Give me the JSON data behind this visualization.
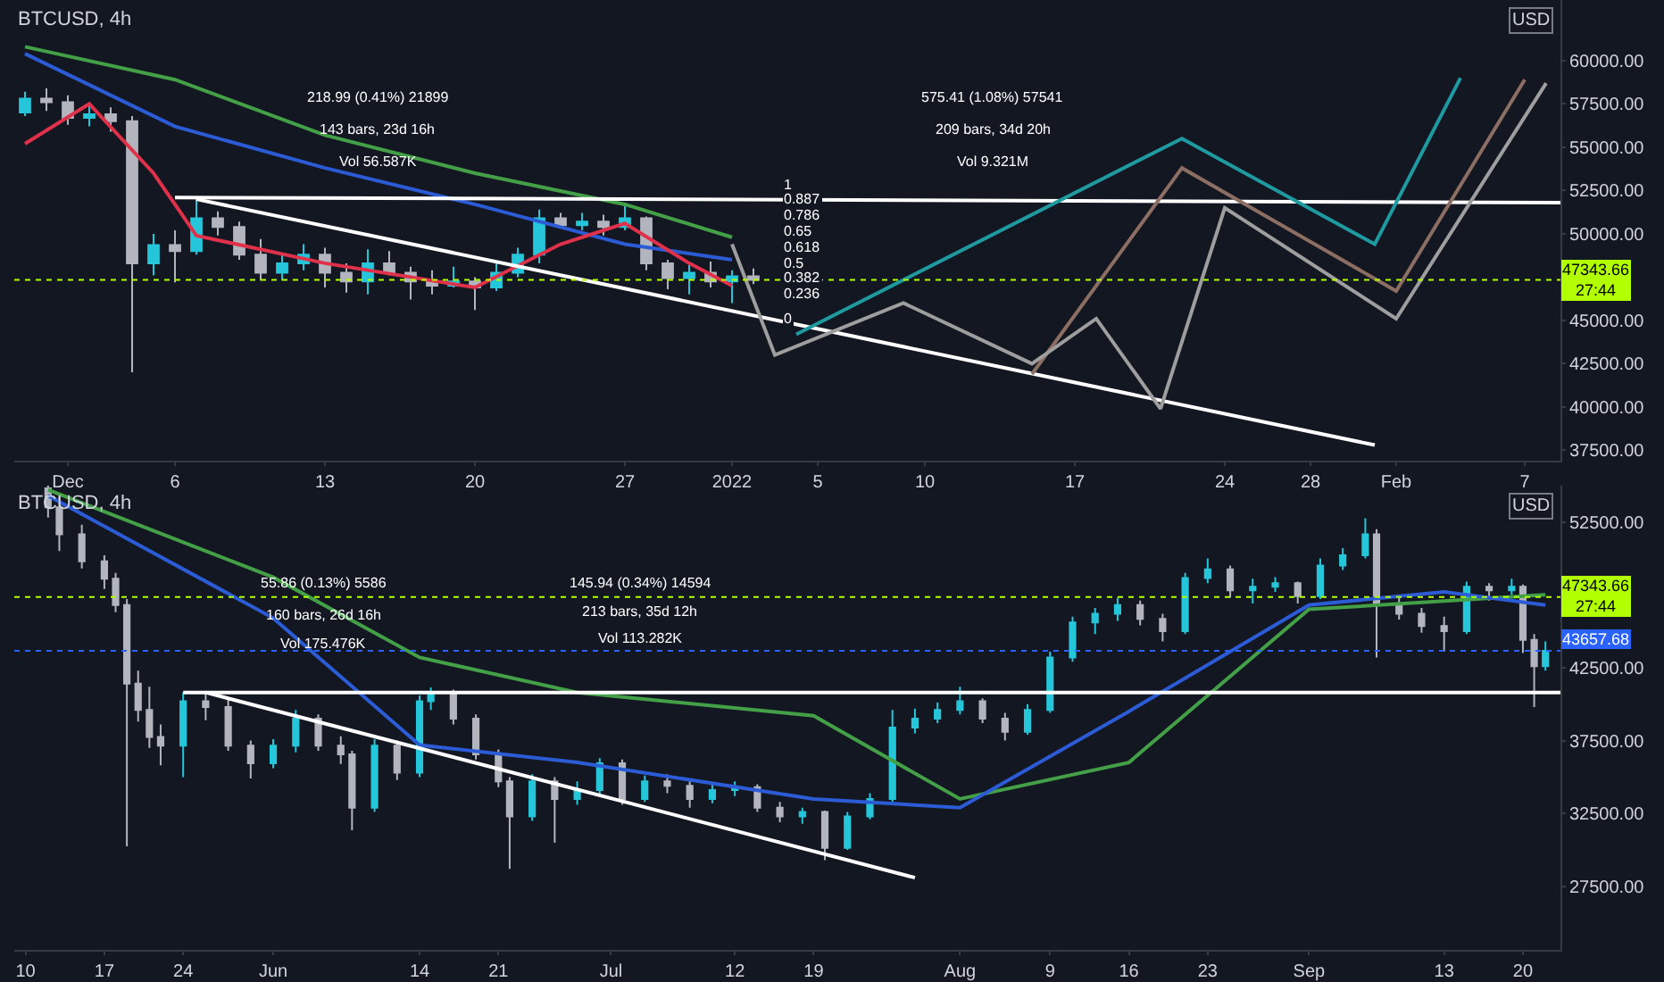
{
  "chart_data": [
    {
      "type": "candlestick",
      "title": "BTCUSD, 4h",
      "ylabel": "USD",
      "x": [
        "2021-11-29",
        "2021-11-30",
        "2021-12-01",
        "2021-12-02",
        "2021-12-03",
        "2021-12-04",
        "2021-12-05",
        "2021-12-06",
        "2021-12-07",
        "2021-12-08",
        "2021-12-09",
        "2021-12-10",
        "2021-12-11",
        "2021-12-12",
        "2021-12-13",
        "2021-12-14",
        "2021-12-15",
        "2021-12-16",
        "2021-12-17",
        "2021-12-18",
        "2021-12-19",
        "2021-12-20",
        "2021-12-21",
        "2021-12-22",
        "2021-12-23",
        "2021-12-24",
        "2021-12-25",
        "2021-12-26",
        "2021-12-27",
        "2021-12-28",
        "2021-12-29",
        "2021-12-30",
        "2021-12-31",
        "2022-01-01",
        "2022-01-02"
      ],
      "ohlc": [
        [
          57000,
          58200,
          56800,
          57800
        ],
        [
          57800,
          58400,
          57100,
          57600
        ],
        [
          57600,
          58000,
          56300,
          56700
        ],
        [
          56700,
          57400,
          56200,
          56900
        ],
        [
          56900,
          57300,
          55900,
          56500
        ],
        [
          56500,
          56800,
          42000,
          48300
        ],
        [
          48300,
          50000,
          47600,
          49350
        ],
        [
          49350,
          50200,
          47200,
          49000
        ],
        [
          49000,
          52000,
          48800,
          50900
        ],
        [
          50900,
          51300,
          49900,
          50400
        ],
        [
          50400,
          50700,
          48500,
          48800
        ],
        [
          48800,
          49700,
          47300,
          47750
        ],
        [
          47750,
          48900,
          47300,
          48300
        ],
        [
          48300,
          49400,
          47900,
          48800
        ],
        [
          48800,
          49200,
          46900,
          47750
        ],
        [
          47750,
          48300,
          46600,
          47250
        ],
        [
          47250,
          49100,
          46500,
          48300
        ],
        [
          48300,
          49000,
          47600,
          47750
        ],
        [
          47750,
          48100,
          46200,
          47250
        ],
        [
          47250,
          47900,
          46500,
          47000
        ],
        [
          47000,
          48100,
          46900,
          47250
        ],
        [
          47250,
          47500,
          45600,
          46900
        ],
        [
          46900,
          48300,
          46700,
          47750
        ],
        [
          47750,
          49200,
          47500,
          48800
        ],
        [
          48800,
          51400,
          48300,
          50900
        ],
        [
          50900,
          51200,
          50300,
          50500
        ],
        [
          50500,
          51200,
          50200,
          50700
        ],
        [
          50700,
          51100,
          49900,
          50400
        ],
        [
          50400,
          51800,
          50200,
          50900
        ],
        [
          50900,
          51000,
          47900,
          48300
        ],
        [
          48300,
          48500,
          46800,
          47450
        ],
        [
          47450,
          48200,
          46500,
          47750
        ],
        [
          47750,
          48400,
          46900,
          47250
        ],
        [
          47250,
          47900,
          46000,
          47550
        ],
        [
          47550,
          48000,
          47100,
          47340
        ]
      ],
      "colors": [
        "#26c6da",
        "#b2b5be",
        "#b2b5be",
        "#26c6da",
        "#b2b5be",
        "#b2b5be",
        "#26c6da",
        "#b2b5be",
        "#26c6da",
        "#b2b5be",
        "#b2b5be",
        "#b2b5be",
        "#26c6da",
        "#26c6da",
        "#b2b5be",
        "#b2b5be",
        "#26c6da",
        "#b2b5be",
        "#b2b5be",
        "#b2b5be",
        "#26c6da",
        "#b2b5be",
        "#26c6da",
        "#26c6da",
        "#26c6da",
        "#b2b5be",
        "#26c6da",
        "#b2b5be",
        "#26c6da",
        "#b2b5be",
        "#b2b5be",
        "#26c6da",
        "#b2b5be",
        "#26c6da",
        "#b2b5be"
      ],
      "series": [
        {
          "type": "line",
          "color": "#43a047",
          "x": [
            "2021-11-29",
            "2021-12-06",
            "2021-12-13",
            "2021-12-20",
            "2021-12-27",
            "2022-01-01"
          ],
          "values": [
            60800,
            58900,
            55700,
            53500,
            51700,
            49800
          ]
        },
        {
          "type": "line",
          "color": "#2c5bd6",
          "x": [
            "2021-11-29",
            "2021-12-06",
            "2021-12-13",
            "2021-12-20",
            "2021-12-27",
            "2022-01-01"
          ],
          "values": [
            60400,
            56200,
            53800,
            51700,
            49400,
            48500
          ]
        },
        {
          "type": "line",
          "color": "#e0314b",
          "x": [
            "2021-11-29",
            "2021-12-02",
            "2021-12-05",
            "2021-12-07",
            "2021-12-13",
            "2021-12-20",
            "2021-12-24",
            "2021-12-27",
            "2021-12-30",
            "2022-01-01"
          ],
          "values": [
            55200,
            57500,
            53500,
            49900,
            48300,
            46900,
            49400,
            50600,
            48300,
            47000
          ]
        },
        {
          "type": "line",
          "color": "#ffffff",
          "x": [
            "2021-12-06",
            "2022-02-08T16:00"
          ],
          "values": [
            52100,
            51800
          ]
        },
        {
          "type": "line",
          "color": "#ffffff",
          "x": [
            "2021-12-07",
            "2022-01-31"
          ],
          "values": [
            52000,
            37800
          ]
        },
        {
          "type": "line",
          "color": "#1e9aa0",
          "x": [
            "2022-01-04",
            "2022-01-22",
            "2022-01-31",
            "2022-02-04"
          ],
          "values": [
            44200,
            55500,
            49400,
            59000
          ]
        },
        {
          "type": "line",
          "color": "#8d6e63",
          "x": [
            "2022-01-15",
            "2022-01-22",
            "2022-02-01",
            "2022-02-07"
          ],
          "values": [
            41900,
            53800,
            46700,
            58900
          ]
        },
        {
          "type": "line",
          "color": "#9e9e9e",
          "x": [
            "2022-01-01",
            "2022-01-03",
            "2022-01-09",
            "2022-01-15",
            "2022-01-18",
            "2022-01-21",
            "2022-01-24",
            "2022-02-01",
            "2022-02-08"
          ],
          "values": [
            49400,
            43000,
            46000,
            42500,
            45100,
            39900,
            51500,
            45100,
            58700
          ]
        }
      ],
      "xlim": [
        "2021-11-28T12:00",
        "2022-02-08T16:00"
      ],
      "xticks": [
        {
          "value": "2021-12-01",
          "label": "Dec"
        },
        {
          "value": "2021-12-06",
          "label": "6"
        },
        {
          "value": "2021-12-13",
          "label": "13"
        },
        {
          "value": "2021-12-20",
          "label": "20"
        },
        {
          "value": "2021-12-27",
          "label": "27"
        },
        {
          "value": "2022-01-01",
          "label": "2022"
        },
        {
          "value": "2022-01-05",
          "label": "5"
        },
        {
          "value": "2022-01-10",
          "label": "10"
        },
        {
          "value": "2022-01-17",
          "label": "17"
        },
        {
          "value": "2022-01-24",
          "label": "24"
        },
        {
          "value": "2022-01-28",
          "label": "28"
        },
        {
          "value": "2022-02-01",
          "label": "Feb"
        },
        {
          "value": "2022-02-07",
          "label": "7"
        }
      ],
      "ylim": [
        36900,
        63500
      ],
      "yticks": [
        {
          "value": 37500,
          "label": "37500.00"
        },
        {
          "value": 40000,
          "label": "40000.00"
        },
        {
          "value": 42500,
          "label": "42500.00"
        },
        {
          "value": 45000,
          "label": "45000.00"
        },
        {
          "value": 50000,
          "label": "50000.00"
        },
        {
          "value": 52500,
          "label": "52500.00"
        },
        {
          "value": 55000,
          "label": "55000.00"
        },
        {
          "value": 57500,
          "label": "57500.00"
        },
        {
          "value": 60000,
          "label": "60000.00"
        }
      ],
      "ref_lines": [
        {
          "axis": "y",
          "value": 47343.66,
          "label": "47343.66\n27:44",
          "color": "#b2ff00",
          "line_style": "dotted"
        }
      ],
      "annotations": [
        "218.99 (0.41%) 21899",
        "143 bars, 23d 16h",
        "Vol 56.587K",
        "575.41 (1.08%) 57541",
        "209 bars, 34d 20h",
        "Vol 9.321M",
        "1",
        "0.887",
        "0.786",
        "0.65",
        "0.618",
        "0.5",
        "0.382",
        "0.236",
        "0"
      ],
      "grid": false
    },
    {
      "type": "candlestick",
      "title": "BTCUSD, 4h",
      "ylabel": "USD",
      "x": [
        "--05-12",
        "--05-13",
        "--05-15",
        "--05-17",
        "--05-18",
        "--05-19",
        "--05-20",
        "--05-21",
        "--05-22",
        "--05-24",
        "--05-26",
        "--05-28",
        "--05-30",
        "--06-01",
        "--06-03",
        "--06-05",
        "--06-07",
        "--06-08",
        "--06-10",
        "--06-12",
        "--06-14",
        "--06-15",
        "--06-17",
        "--06-19",
        "--06-21",
        "--06-22",
        "--06-24",
        "--06-26",
        "--06-28",
        "--06-30",
        "--07-02",
        "--07-04",
        "--07-06",
        "--07-08",
        "--07-10",
        "--07-12",
        "--07-14",
        "--07-16",
        "--07-18",
        "--07-20",
        "--07-22",
        "--07-24",
        "--07-26",
        "--07-28",
        "--07-30",
        "--08-01",
        "--08-03",
        "--08-05",
        "--08-07",
        "--08-09",
        "--08-11",
        "--08-13",
        "--08-15",
        "--08-17",
        "--08-19",
        "--08-21",
        "--08-23",
        "--08-25",
        "--08-27",
        "--08-29",
        "--08-31",
        "--09-02",
        "--09-04",
        "--09-06",
        "--09-07",
        "--09-09",
        "--09-11",
        "--09-13",
        "--09-15",
        "--09-17",
        "--09-19",
        "--09-20",
        "--09-21",
        "--09-22"
      ],
      "ohlc": [
        [
          54800,
          55000,
          52800,
          53500
        ],
        [
          53500,
          54200,
          50500,
          51650
        ],
        [
          51650,
          52300,
          49300,
          49800
        ],
        [
          49800,
          50200,
          47900,
          48600
        ],
        [
          48600,
          49000,
          46300,
          46800
        ],
        [
          46800,
          47200,
          30250,
          41400
        ],
        [
          41400,
          42300,
          38800,
          39600
        ],
        [
          39600,
          41200,
          37000,
          37750
        ],
        [
          37750,
          38600,
          35800,
          37150
        ],
        [
          37150,
          40800,
          35000,
          40200
        ],
        [
          40200,
          40900,
          38900,
          39800
        ],
        [
          39800,
          40400,
          36800,
          37150
        ],
        [
          37150,
          37500,
          34900,
          35950
        ],
        [
          35950,
          37600,
          35600,
          37150
        ],
        [
          37150,
          39600,
          36700,
          39000
        ],
        [
          39000,
          39300,
          36800,
          37150
        ],
        [
          37150,
          37800,
          35900,
          36550
        ],
        [
          36550,
          36800,
          31350,
          32900
        ],
        [
          32900,
          37600,
          32600,
          37150
        ],
        [
          37150,
          37500,
          34800,
          35300
        ],
        [
          35300,
          40600,
          35000,
          40200
        ],
        [
          40200,
          41150,
          39600,
          40800
        ],
        [
          40800,
          41000,
          38600,
          39000
        ],
        [
          39000,
          39300,
          36200,
          36550
        ],
        [
          36550,
          36900,
          34300,
          34700
        ],
        [
          34700,
          35000,
          28700,
          32300
        ],
        [
          32300,
          35200,
          32000,
          34700
        ],
        [
          34700,
          35000,
          30500,
          33500
        ],
        [
          33500,
          34700,
          33100,
          34100
        ],
        [
          34100,
          36300,
          33800,
          35950
        ],
        [
          35950,
          36200,
          33100,
          33500
        ],
        [
          33500,
          35100,
          33300,
          34700
        ],
        [
          34700,
          35200,
          33900,
          34400
        ],
        [
          34400,
          34700,
          32900,
          33500
        ],
        [
          33500,
          34500,
          33200,
          34100
        ],
        [
          34100,
          34700,
          33700,
          34300
        ],
        [
          34300,
          34500,
          32600,
          32900
        ],
        [
          32900,
          33300,
          31900,
          32300
        ],
        [
          32300,
          32900,
          31800,
          32600
        ],
        [
          32600,
          32700,
          29300,
          30150
        ],
        [
          30150,
          32600,
          30000,
          32300
        ],
        [
          32300,
          33900,
          32100,
          33500
        ],
        [
          33500,
          39600,
          33300,
          38400
        ],
        [
          38400,
          39700,
          38000,
          39000
        ],
        [
          39000,
          40100,
          38700,
          39600
        ],
        [
          39600,
          41200,
          39300,
          40200
        ],
        [
          40200,
          40400,
          38700,
          39000
        ],
        [
          39000,
          39400,
          37500,
          38100
        ],
        [
          38100,
          40000,
          37900,
          39600
        ],
        [
          39600,
          43600,
          39400,
          43200
        ],
        [
          43200,
          46000,
          42900,
          45600
        ],
        [
          45600,
          46600,
          44800,
          46200
        ],
        [
          46200,
          47300,
          45700,
          46800
        ],
        [
          46800,
          47100,
          45400,
          45850
        ],
        [
          45850,
          46200,
          44300,
          45000
        ],
        [
          45000,
          49000,
          44800,
          48650
        ],
        [
          48650,
          50000,
          48300,
          49250
        ],
        [
          49250,
          49500,
          47300,
          47800
        ],
        [
          47800,
          48600,
          46900,
          48050
        ],
        [
          48050,
          48700,
          47700,
          48300
        ],
        [
          48300,
          48400,
          46900,
          47400
        ],
        [
          47400,
          50000,
          47200,
          49500
        ],
        [
          49500,
          50700,
          49200,
          50200
        ],
        [
          50200,
          52750,
          50000,
          51650
        ],
        [
          51650,
          52000,
          43200,
          46800
        ],
        [
          46800,
          47300,
          45800,
          46200
        ],
        [
          46200,
          46600,
          44900,
          45350
        ],
        [
          45350,
          46000,
          43600,
          45000
        ],
        [
          45000,
          48400,
          44800,
          48050
        ],
        [
          48050,
          48300,
          47100,
          47800
        ],
        [
          47800,
          48600,
          47500,
          48050
        ],
        [
          48050,
          48200,
          43500,
          44400
        ],
        [
          44400,
          44800,
          39800,
          42600
        ],
        [
          42600,
          44300,
          42300,
          43660
        ]
      ],
      "colors": [
        "#b2b5be",
        "#b2b5be",
        "#b2b5be",
        "#b2b5be",
        "#b2b5be",
        "#b2b5be",
        "#b2b5be",
        "#b2b5be",
        "#b2b5be",
        "#26c6da",
        "#b2b5be",
        "#b2b5be",
        "#b2b5be",
        "#26c6da",
        "#26c6da",
        "#b2b5be",
        "#b2b5be",
        "#b2b5be",
        "#26c6da",
        "#b2b5be",
        "#26c6da",
        "#26c6da",
        "#b2b5be",
        "#b2b5be",
        "#b2b5be",
        "#b2b5be",
        "#26c6da",
        "#b2b5be",
        "#26c6da",
        "#26c6da",
        "#b2b5be",
        "#26c6da",
        "#b2b5be",
        "#b2b5be",
        "#26c6da",
        "#26c6da",
        "#b2b5be",
        "#b2b5be",
        "#26c6da",
        "#b2b5be",
        "#26c6da",
        "#26c6da",
        "#26c6da",
        "#26c6da",
        "#26c6da",
        "#26c6da",
        "#b2b5be",
        "#b2b5be",
        "#26c6da",
        "#26c6da",
        "#26c6da",
        "#26c6da",
        "#26c6da",
        "#b2b5be",
        "#b2b5be",
        "#26c6da",
        "#26c6da",
        "#b2b5be",
        "#26c6da",
        "#26c6da",
        "#b2b5be",
        "#26c6da",
        "#26c6da",
        "#26c6da",
        "#b2b5be",
        "#b2b5be",
        "#b2b5be",
        "#b2b5be",
        "#26c6da",
        "#b2b5be",
        "#26c6da",
        "#b2b5be",
        "#b2b5be",
        "#26c6da"
      ],
      "series": [
        {
          "type": "line",
          "color": "#43a047",
          "x": [
            "--05-12",
            "--06-01",
            "--06-14",
            "--06-28",
            "--07-19",
            "--08-01",
            "--08-16",
            "--09-01",
            "--09-22"
          ],
          "values": [
            54700,
            48700,
            43200,
            40800,
            39200,
            33500,
            36000,
            46500,
            47500
          ]
        },
        {
          "type": "line",
          "color": "#2c5bd6",
          "x": [
            "--05-12",
            "--06-01",
            "--06-14",
            "--06-28",
            "--07-19",
            "--08-01",
            "--08-16",
            "--09-01",
            "--09-13",
            "--09-22"
          ],
          "values": [
            54300,
            45900,
            37200,
            36000,
            33500,
            32900,
            39500,
            46800,
            47700,
            46800
          ]
        },
        {
          "type": "line",
          "color": "#ffffff",
          "x": [
            "--05-24",
            "--09-23T08:00"
          ],
          "values": [
            40800,
            40800
          ]
        },
        {
          "type": "line",
          "color": "#ffffff",
          "x": [
            "--05-26",
            "--07-28"
          ],
          "values": [
            40800,
            28100
          ]
        }
      ],
      "xlim": [
        "--05-09T00:00",
        "--09-23T08:00"
      ],
      "xticks": [
        {
          "value": "--05-10",
          "label": "10"
        },
        {
          "value": "--05-17",
          "label": "17"
        },
        {
          "value": "--05-24",
          "label": "24"
        },
        {
          "value": "--06-01",
          "label": "Jun"
        },
        {
          "value": "--06-14",
          "label": "14"
        },
        {
          "value": "--06-21",
          "label": "21"
        },
        {
          "value": "--07-01",
          "label": "Jul"
        },
        {
          "value": "--07-12",
          "label": "12"
        },
        {
          "value": "--07-19",
          "label": "19"
        },
        {
          "value": "--08-01",
          "label": "Aug"
        },
        {
          "value": "--08-09",
          "label": "9"
        },
        {
          "value": "--08-16",
          "label": "16"
        },
        {
          "value": "--08-23",
          "label": "23"
        },
        {
          "value": "--09-01",
          "label": "Sep"
        },
        {
          "value": "--09-13",
          "label": "13"
        },
        {
          "value": "--09-20",
          "label": "20"
        }
      ],
      "ylim": [
        23150,
        55000
      ],
      "yticks": [
        {
          "value": 27500,
          "label": "27500.00"
        },
        {
          "value": 32500,
          "label": "32500.00"
        },
        {
          "value": 37500,
          "label": "37500.00"
        },
        {
          "value": 42500,
          "label": "42500.00"
        },
        {
          "value": 52500,
          "label": "52500.00"
        }
      ],
      "ref_lines": [
        {
          "axis": "y",
          "value": 47343.66,
          "label": "47343.66\n27:44",
          "color": "#b2ff00",
          "line_style": "dotted"
        },
        {
          "axis": "y",
          "value": 43657.68,
          "label": "43657.68",
          "color": "#2962ff",
          "line_style": "dotted"
        }
      ],
      "annotations": [
        "55.86 (0.13%) 5586",
        "160 bars, 26d 16h",
        "Vol 175.476K",
        "145.94 (0.34%) 14594",
        "213 bars, 35d 12h",
        "Vol 113.282K"
      ],
      "grid": false
    }
  ]
}
